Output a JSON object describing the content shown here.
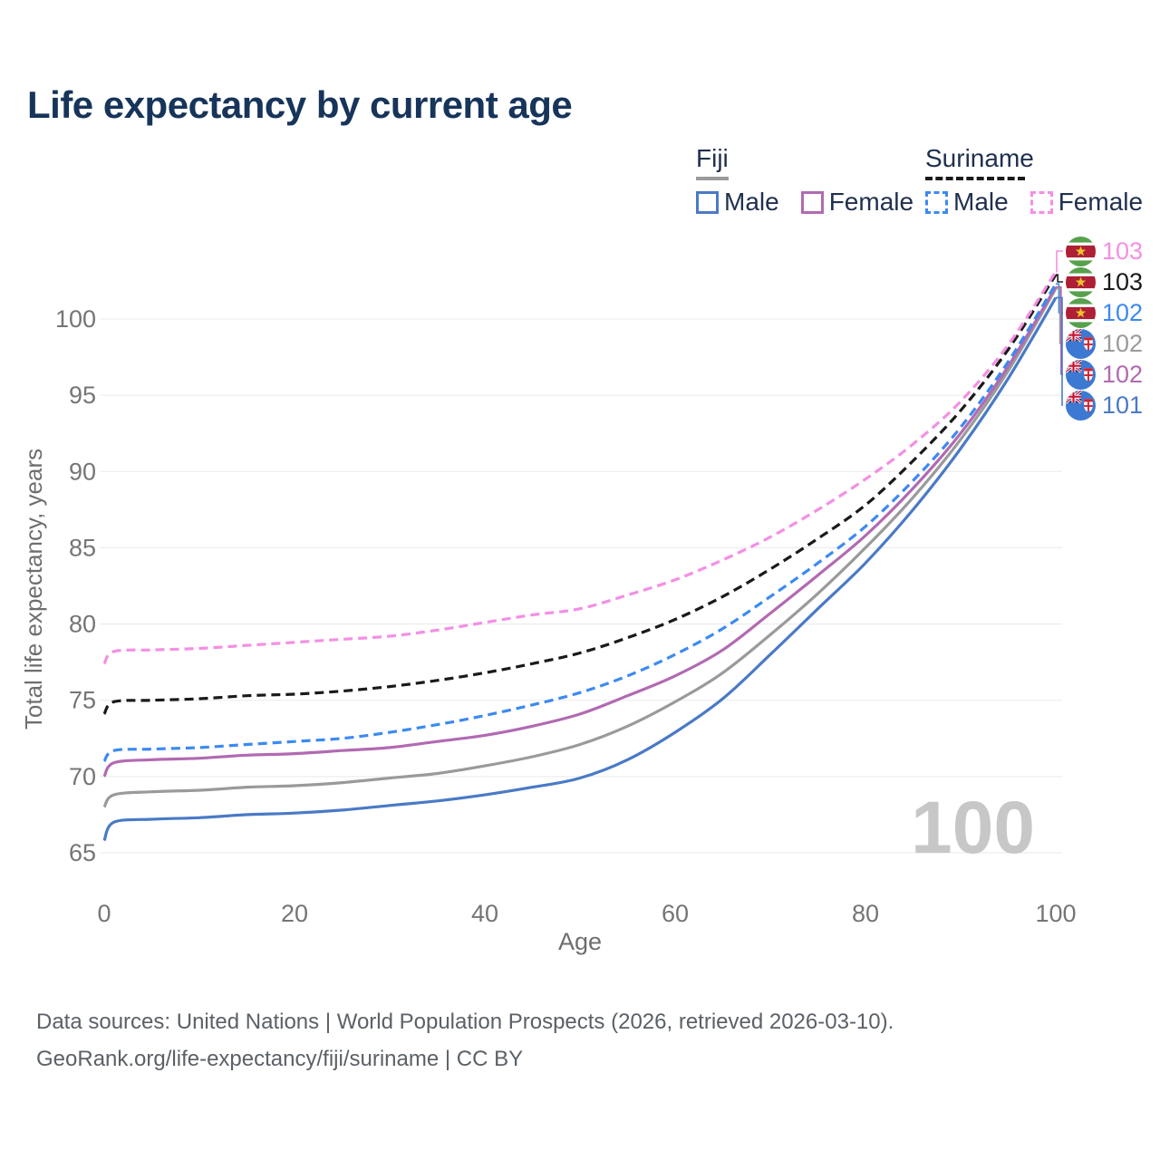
{
  "title": "Life expectancy by current age",
  "legend": {
    "groups": [
      {
        "name": "Fiji",
        "line_style": "solid",
        "underline_color": "#9a9a9a",
        "items": [
          {
            "label": "Male",
            "color": "#4a7ac6"
          },
          {
            "label": "Female",
            "color": "#b16ab1"
          }
        ]
      },
      {
        "name": "Suriname",
        "line_style": "dashed",
        "underline_color": "#1a1a1a",
        "items": [
          {
            "label": "Male",
            "color": "#3c8af0"
          },
          {
            "label": "Female",
            "color": "#f48fe4"
          }
        ]
      }
    ]
  },
  "watermark": "100",
  "end_labels": [
    {
      "value": "103",
      "series": "Suriname Female",
      "flag": "suriname-flag-icon",
      "color": "#f48fe4"
    },
    {
      "value": "103",
      "series": "Suriname All",
      "flag": "suriname-flag-icon",
      "color": "#1a1a1a"
    },
    {
      "value": "102",
      "series": "Suriname Male",
      "flag": "suriname-flag-icon",
      "color": "#3c8af0"
    },
    {
      "value": "102",
      "series": "Fiji All",
      "flag": "fiji-flag-icon",
      "color": "#9a9a9a"
    },
    {
      "value": "102",
      "series": "Fiji Female",
      "flag": "fiji-flag-icon",
      "color": "#b16ab1"
    },
    {
      "value": "101",
      "series": "Fiji Male",
      "flag": "fiji-flag-icon",
      "color": "#4a7ac6"
    }
  ],
  "footer": {
    "line1": "Data sources: United Nations | World Population Prospects (2026, retrieved 2026-03-10).",
    "line2": "GeoRank.org/life-expectancy/fiji/suriname | CC BY"
  },
  "chart_data": {
    "type": "line",
    "title": "Life expectancy by current age",
    "xlabel": "Age",
    "ylabel": "Total life expectancy, years",
    "xlim": [
      0,
      100
    ],
    "ylim": [
      65,
      100
    ],
    "x_ticks": [
      0,
      20,
      40,
      60,
      80,
      100
    ],
    "y_ticks": [
      65,
      70,
      75,
      80,
      85,
      90,
      95,
      100
    ],
    "grid": "horizontal",
    "legend_position": "top-right",
    "x": [
      0,
      1,
      5,
      10,
      15,
      20,
      25,
      30,
      35,
      40,
      45,
      50,
      55,
      60,
      65,
      70,
      75,
      80,
      85,
      90,
      95,
      100
    ],
    "series": [
      {
        "key": "fiji_male",
        "name": "Fiji Male",
        "country": "Fiji",
        "sex": "Male",
        "color": "#4a7ac6",
        "dash": "solid",
        "values": [
          65.8,
          67.0,
          67.2,
          67.3,
          67.5,
          67.6,
          67.8,
          68.1,
          68.4,
          68.8,
          69.3,
          69.9,
          71.1,
          72.9,
          75.1,
          78.0,
          81.0,
          84.0,
          87.5,
          91.5,
          96.1,
          101.4
        ]
      },
      {
        "key": "fiji_all",
        "name": "Fiji All",
        "country": "Fiji",
        "sex": "All",
        "color": "#9a9a9a",
        "dash": "solid",
        "values": [
          68.0,
          68.8,
          69.0,
          69.1,
          69.3,
          69.4,
          69.6,
          69.9,
          70.2,
          70.7,
          71.3,
          72.1,
          73.3,
          74.9,
          76.8,
          79.3,
          82.0,
          85.0,
          88.3,
          92.1,
          96.6,
          102.0
        ]
      },
      {
        "key": "fiji_female",
        "name": "Fiji Female",
        "country": "Fiji",
        "sex": "Female",
        "color": "#b16ab1",
        "dash": "solid",
        "values": [
          70.0,
          70.9,
          71.1,
          71.2,
          71.4,
          71.5,
          71.7,
          71.9,
          72.3,
          72.7,
          73.3,
          74.1,
          75.3,
          76.6,
          78.3,
          80.7,
          83.2,
          85.8,
          88.9,
          92.5,
          96.9,
          102.1
        ]
      },
      {
        "key": "suriname_male",
        "name": "Suriname Male",
        "country": "Suriname",
        "sex": "Male",
        "color": "#3c8af0",
        "dash": "dashed",
        "values": [
          71.0,
          71.7,
          71.8,
          71.9,
          72.1,
          72.3,
          72.5,
          72.9,
          73.4,
          74.0,
          74.7,
          75.5,
          76.6,
          78.0,
          79.7,
          81.8,
          84.0,
          86.4,
          89.4,
          92.9,
          97.2,
          102.3
        ]
      },
      {
        "key": "suriname_all",
        "name": "Suriname All",
        "country": "Suriname",
        "sex": "All",
        "color": "#1a1a1a",
        "dash": "dashed",
        "values": [
          74.1,
          74.9,
          75.0,
          75.1,
          75.3,
          75.4,
          75.6,
          75.9,
          76.3,
          76.8,
          77.4,
          78.1,
          79.1,
          80.3,
          81.8,
          83.6,
          85.6,
          87.8,
          90.7,
          94.0,
          98.0,
          102.9
        ]
      },
      {
        "key": "suriname_female",
        "name": "Suriname Female",
        "country": "Suriname",
        "sex": "Female",
        "color": "#f48fe4",
        "dash": "dashed",
        "values": [
          77.4,
          78.2,
          78.3,
          78.4,
          78.6,
          78.8,
          79.0,
          79.2,
          79.6,
          80.1,
          80.6,
          81.0,
          81.9,
          82.9,
          84.2,
          85.7,
          87.5,
          89.5,
          91.8,
          94.6,
          98.3,
          103.1
        ]
      }
    ]
  }
}
